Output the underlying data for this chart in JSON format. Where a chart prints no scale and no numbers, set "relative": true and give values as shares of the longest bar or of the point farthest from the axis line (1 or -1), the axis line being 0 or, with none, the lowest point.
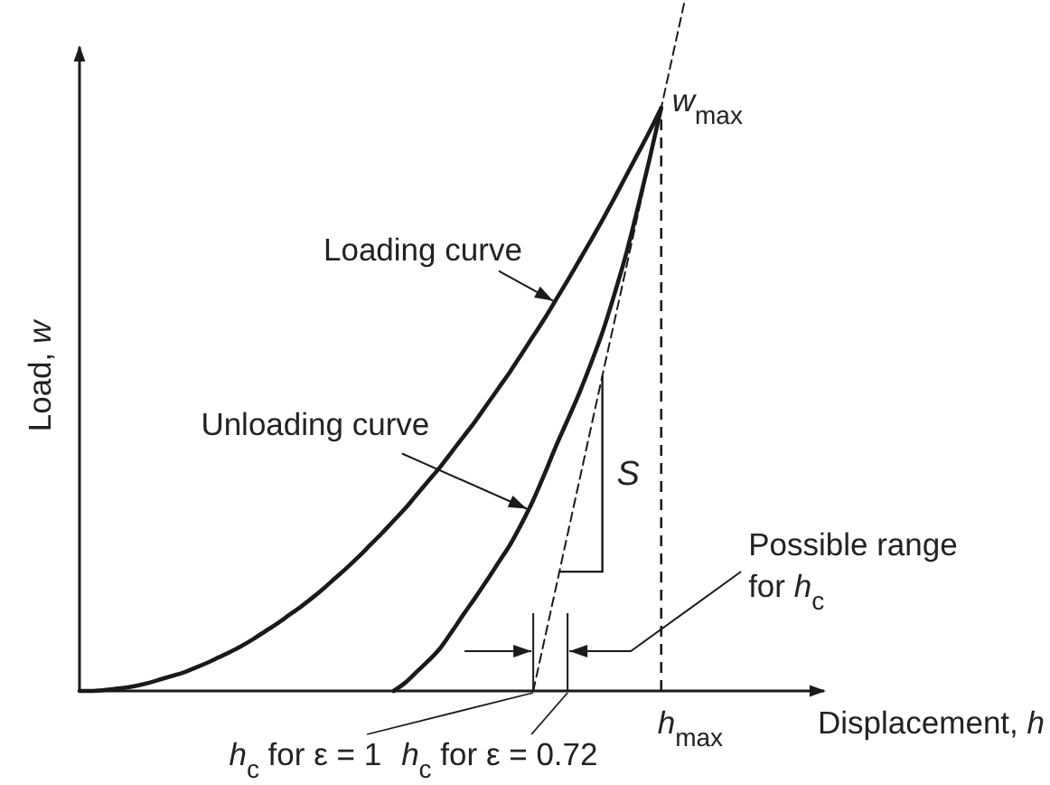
{
  "chart_data": {
    "type": "line",
    "xlabel": "Displacement, h",
    "ylabel": "Load, w",
    "relative": true,
    "categories": [
      null,
      null,
      null,
      null,
      null,
      null,
      null,
      null,
      null,
      null,
      null,
      null,
      null,
      null,
      null,
      null,
      null,
      null,
      null,
      null,
      null,
      null,
      null,
      null,
      null,
      null,
      null,
      null,
      null,
      null,
      null,
      null,
      null,
      null,
      null,
      null,
      null,
      null,
      null,
      null,
      null,
      null,
      null,
      null,
      null,
      null,
      null,
      null,
      null,
      null,
      null,
      null,
      null,
      null,
      null,
      null,
      null,
      null,
      null,
      null,
      null,
      null,
      null,
      null,
      null
    ],
    "series": [
      {
        "name": "Loading curve",
        "color": "#1a1a1a",
        "values": [
          0,
          0,
          0.001,
          0.003,
          0.005,
          0.008,
          0.012,
          0.017,
          0.022,
          0.027,
          0.034,
          0.041,
          0.049,
          0.057,
          0.066,
          0.076,
          0.087,
          0.098,
          0.11,
          0.122,
          0.135,
          0.149,
          0.164,
          0.179,
          0.195,
          0.212,
          0.229,
          0.247,
          0.265,
          0.285,
          0.305,
          0.325,
          0.347,
          0.369,
          0.391,
          0.415,
          0.439,
          0.463,
          0.489,
          0.515,
          0.541,
          0.569,
          0.597,
          0.626,
          0.655,
          0.685,
          0.716,
          0.748,
          0.78,
          0.812,
          0.846,
          null,
          null,
          null,
          null,
          null,
          null,
          null,
          null,
          null,
          null,
          null,
          null,
          null,
          null
        ]
      },
      {
        "color": "#1a1a1a",
        "values": [
          null,
          null,
          null,
          null,
          null,
          null,
          null,
          null,
          null,
          null,
          null,
          null,
          null,
          null,
          null,
          null,
          null,
          null,
          null,
          null,
          null,
          null,
          null,
          null,
          null,
          null,
          null,
          0,
          0.012,
          0.028,
          0.044,
          0.062,
          0.086,
          0.111,
          0.135,
          0.16,
          0.186,
          0.212,
          0.243,
          0.277,
          0.316,
          0.357,
          0.395,
          0.434,
          0.477,
          0.523,
          0.577,
          0.635,
          0.702,
          0.772,
          0.846,
          null,
          null,
          null,
          null,
          null,
          null,
          null,
          null,
          null,
          null,
          null,
          null,
          null,
          null
        ]
      },
      {
        "color": "#1a1a1a",
        "line_style": "dashed",
        "values": [
          null,
          null,
          null,
          null,
          null,
          null,
          null,
          null,
          null,
          null,
          null,
          null,
          null,
          null,
          null,
          null,
          null,
          null,
          null,
          null,
          null,
          null,
          null,
          null,
          null,
          null,
          null,
          null,
          null,
          null,
          null,
          null,
          null,
          null,
          null,
          null,
          null,
          null,
          null,
          0,
          0.077,
          0.154,
          0.231,
          0.308,
          0.385,
          0.462,
          0.538,
          0.615,
          0.692,
          0.769,
          0.846,
          0.923,
          1,
          null,
          null,
          null,
          null,
          null,
          null,
          null,
          null,
          null,
          null,
          null,
          null
        ]
      }
    ],
    "annotations": [
      "w$_{max}$",
      "h$_{max}$",
      "h$_{c}$ for ε = 1",
      "h$_{c}$ for ε = 0.72",
      "Possible range for h$_{c}$",
      "S",
      "Unloading curve"
    ]
  }
}
